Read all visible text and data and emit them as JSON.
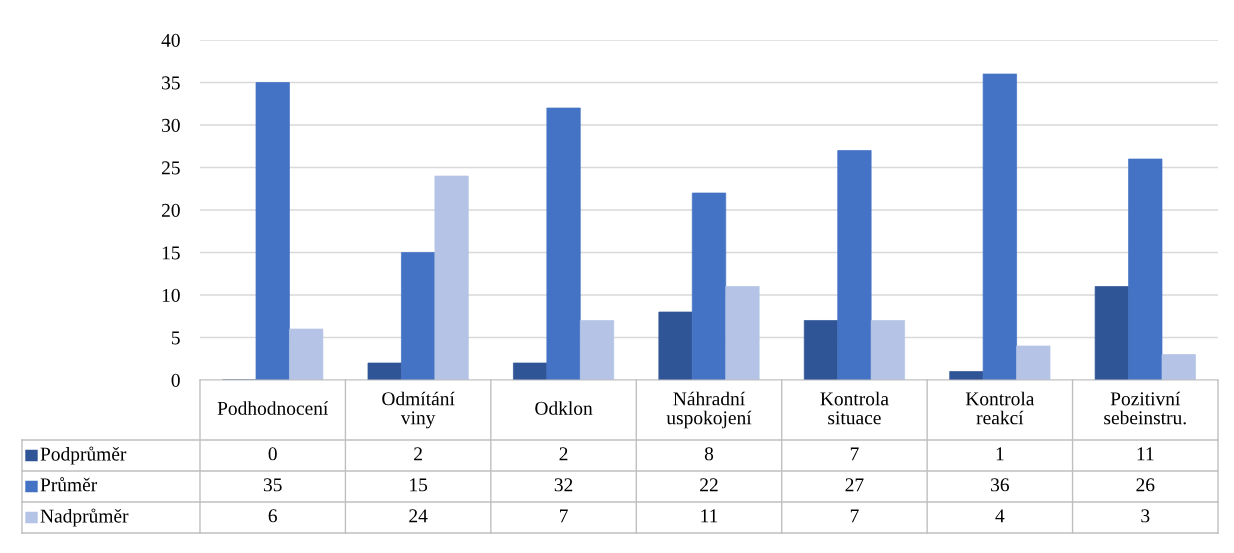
{
  "chart_data": {
    "type": "bar",
    "categories": [
      "Podhodnocení",
      "Odmítání\nviny",
      "Odklon",
      "Náhradní\nuspokojení",
      "Kontrola\nsituace",
      "Kontrola\nreakcí",
      "Pozitivní\nsebeinstru."
    ],
    "series": [
      {
        "name": "Podprůměr",
        "color": "#2f5597",
        "values": [
          0,
          2,
          2,
          8,
          7,
          1,
          11
        ]
      },
      {
        "name": "Průměr",
        "color": "#4472c4",
        "values": [
          35,
          15,
          32,
          22,
          27,
          36,
          26
        ]
      },
      {
        "name": "Nadprůměr",
        "color": "#b4c3e6",
        "values": [
          6,
          24,
          7,
          11,
          7,
          4,
          3
        ]
      }
    ],
    "ylim": [
      0,
      40
    ],
    "yticks": [
      0,
      5,
      10,
      15,
      20,
      25,
      30,
      35,
      40
    ],
    "grid": "y",
    "legend": "bottom",
    "data_labels": true
  }
}
